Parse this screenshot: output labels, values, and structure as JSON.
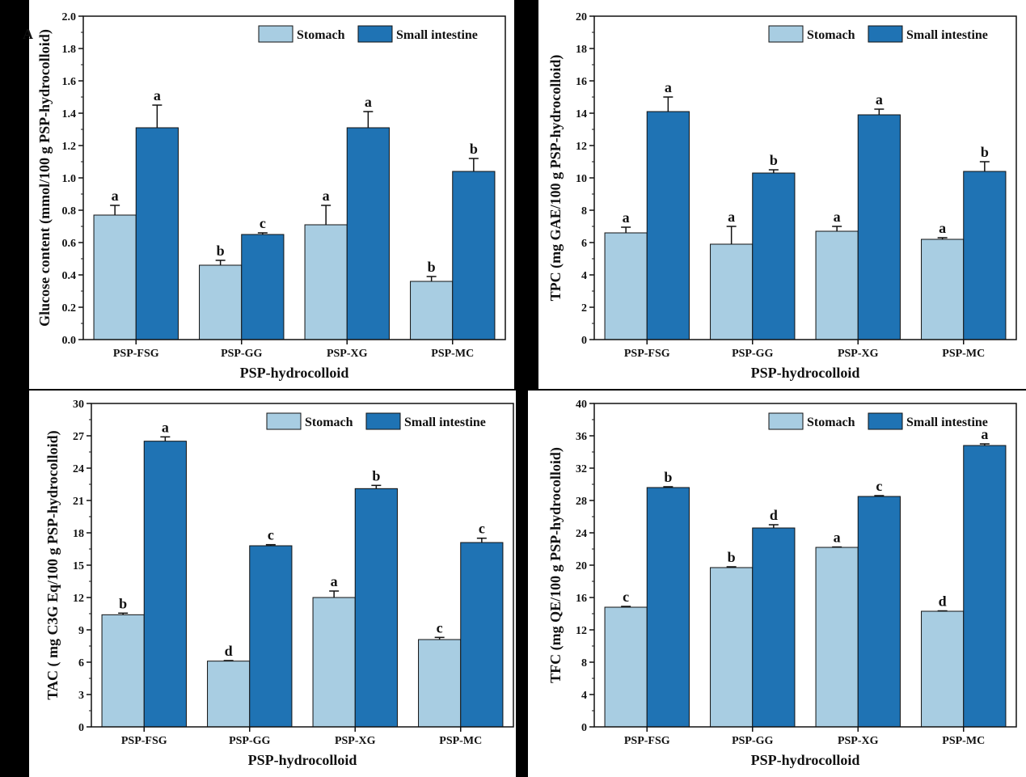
{
  "chart_data": [
    {
      "type": "bar",
      "panel_label": "A",
      "categories": [
        "PSP-FSG",
        "PSP-GG",
        "PSP-XG",
        "PSP-MC"
      ],
      "xlabel": "PSP-hydrocolloid",
      "ylabel": "Glucose content (mmol/100 g PSP-hydrocolloid)",
      "ylim": [
        0,
        2.0
      ],
      "yticks": [
        0.0,
        0.2,
        0.4,
        0.6,
        0.8,
        1.0,
        1.2,
        1.4,
        1.6,
        1.8,
        2.0
      ],
      "ytick_labels": [
        "0.0",
        "0.2",
        "0.4",
        "0.6",
        "0.8",
        "1.0",
        "1.2",
        "1.4",
        "1.6",
        "1.8",
        "2.0"
      ],
      "legend_position": "top-right",
      "grid": false,
      "series": [
        {
          "name": "Stomach",
          "color": "#a8cde2",
          "values": [
            0.77,
            0.46,
            0.71,
            0.36
          ],
          "errors": [
            0.06,
            0.03,
            0.12,
            0.03
          ],
          "labels": [
            "a",
            "b",
            "a",
            "b"
          ]
        },
        {
          "name": "Small intestine",
          "color": "#1f73b4",
          "values": [
            1.31,
            0.65,
            1.31,
            1.04
          ],
          "errors": [
            0.14,
            0.01,
            0.1,
            0.08
          ],
          "labels": [
            "a",
            "c",
            "a",
            "b"
          ]
        }
      ]
    },
    {
      "type": "bar",
      "panel_label": "",
      "categories": [
        "PSP-FSG",
        "PSP-GG",
        "PSP-XG",
        "PSP-MC"
      ],
      "xlabel": "PSP-hydrocolloid",
      "ylabel": "TPC (mg GAE/100 g PSP-hydrocolloid)",
      "ylim": [
        0,
        20
      ],
      "yticks": [
        0,
        2,
        4,
        6,
        8,
        10,
        12,
        14,
        16,
        18,
        20
      ],
      "ytick_labels": [
        "0",
        "2",
        "4",
        "6",
        "8",
        "10",
        "12",
        "14",
        "16",
        "18",
        "20"
      ],
      "legend_position": "top-right",
      "grid": false,
      "series": [
        {
          "name": "Stomach",
          "color": "#a8cde2",
          "values": [
            6.6,
            5.9,
            6.7,
            6.2
          ],
          "errors": [
            0.35,
            1.1,
            0.3,
            0.1
          ],
          "labels": [
            "a",
            "a",
            "a",
            "a"
          ]
        },
        {
          "name": "Small intestine",
          "color": "#1f73b4",
          "values": [
            14.1,
            10.3,
            13.9,
            10.4
          ],
          "errors": [
            0.9,
            0.2,
            0.35,
            0.6
          ],
          "labels": [
            "a",
            "b",
            "a",
            "b"
          ]
        }
      ]
    },
    {
      "type": "bar",
      "panel_label": "",
      "categories": [
        "PSP-FSG",
        "PSP-GG",
        "PSP-XG",
        "PSP-MC"
      ],
      "xlabel": "PSP-hydrocolloid",
      "ylabel": "TAC ( mg C3G Eq/100 g PSP-hydrocolloid)",
      "ylim": [
        0,
        30
      ],
      "yticks": [
        0,
        3,
        6,
        9,
        12,
        15,
        18,
        21,
        24,
        27,
        30
      ],
      "ytick_labels": [
        "0",
        "3",
        "6",
        "9",
        "12",
        "15",
        "18",
        "21",
        "24",
        "27",
        "30"
      ],
      "legend_position": "top-right",
      "grid": false,
      "series": [
        {
          "name": "Stomach",
          "color": "#a8cde2",
          "values": [
            10.4,
            6.1,
            12.0,
            8.1
          ],
          "errors": [
            0.15,
            0.05,
            0.6,
            0.2
          ],
          "labels": [
            "b",
            "d",
            "a",
            "c"
          ]
        },
        {
          "name": "Small intestine",
          "color": "#1f73b4",
          "values": [
            26.5,
            16.8,
            22.1,
            17.1
          ],
          "errors": [
            0.4,
            0.1,
            0.3,
            0.4
          ],
          "labels": [
            "a",
            "c",
            "b",
            "c"
          ]
        }
      ]
    },
    {
      "type": "bar",
      "panel_label": "",
      "categories": [
        "PSP-FSG",
        "PSP-GG",
        "PSP-XG",
        "PSP-MC"
      ],
      "xlabel": "PSP-hydrocolloid",
      "ylabel": "TFC (mg QE/100 g PSP-hydrocolloid)",
      "ylim": [
        0,
        40
      ],
      "yticks": [
        0,
        4,
        8,
        12,
        16,
        20,
        24,
        28,
        32,
        36,
        40
      ],
      "ytick_labels": [
        "0",
        "4",
        "8",
        "12",
        "16",
        "20",
        "24",
        "28",
        "32",
        "36",
        "40"
      ],
      "legend_position": "top-right",
      "grid": false,
      "series": [
        {
          "name": "Stomach",
          "color": "#a8cde2",
          "values": [
            14.8,
            19.7,
            22.2,
            14.3
          ],
          "errors": [
            0.1,
            0.1,
            0.05,
            0.05
          ],
          "labels": [
            "c",
            "b",
            "a",
            "d"
          ]
        },
        {
          "name": "Small intestine",
          "color": "#1f73b4",
          "values": [
            29.6,
            24.6,
            28.5,
            34.8
          ],
          "errors": [
            0.1,
            0.4,
            0.1,
            0.2
          ],
          "labels": [
            "b",
            "d",
            "c",
            "a"
          ]
        }
      ]
    }
  ]
}
